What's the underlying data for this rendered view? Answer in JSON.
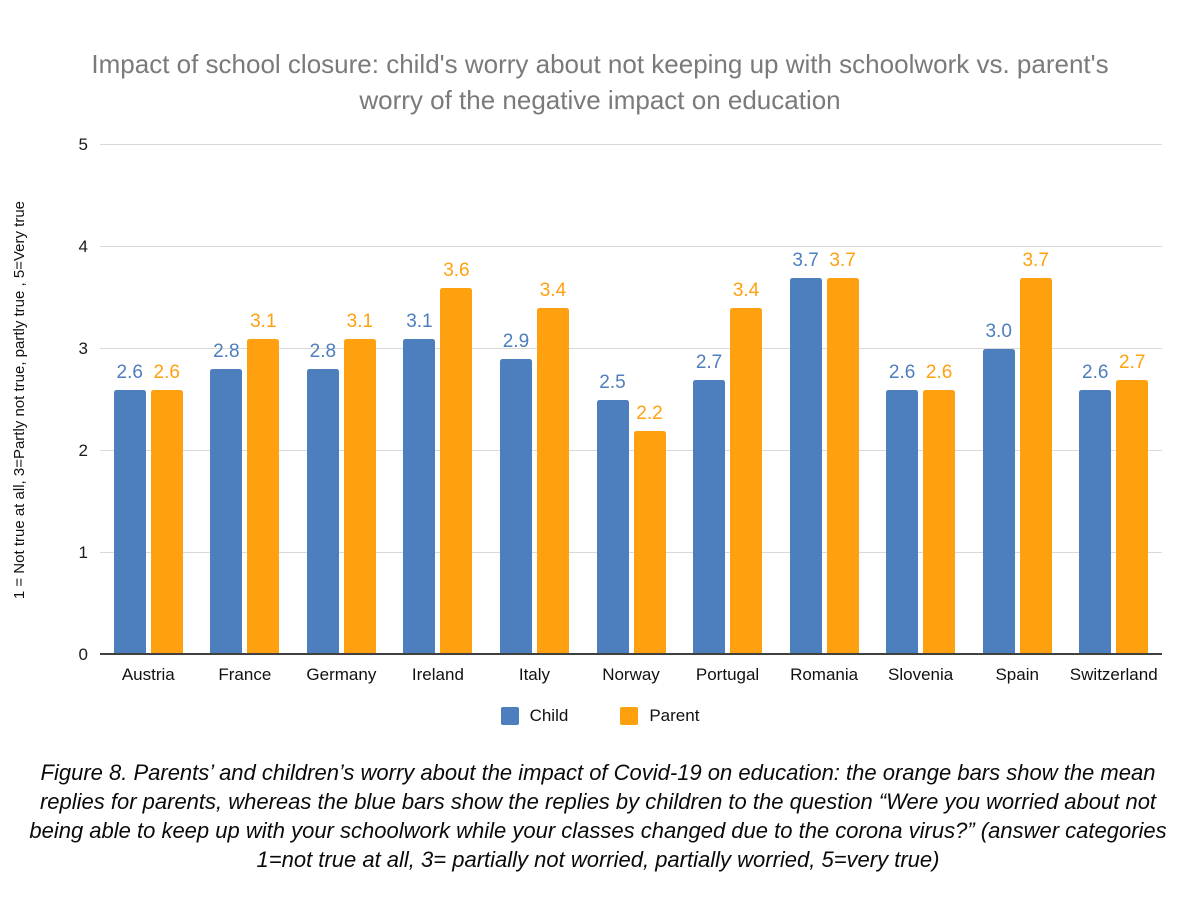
{
  "title": "Impact of school closure: child's worry about not keeping up with schoolwork vs. parent's worry of the negative impact on education",
  "chart_data": {
    "type": "bar",
    "title": "Impact of school closure: child's worry about not keeping up with schoolwork vs. parent's worry of the negative impact on education",
    "categories": [
      "Austria",
      "France",
      "Germany",
      "Ireland",
      "Italy",
      "Norway",
      "Portugal",
      "Romania",
      "Slovenia",
      "Spain",
      "Switzerland"
    ],
    "series": [
      {
        "name": "Child",
        "color": "#4d7ebd",
        "values": [
          2.6,
          2.8,
          2.8,
          3.1,
          2.9,
          2.5,
          2.7,
          3.7,
          2.6,
          3.0,
          2.6
        ]
      },
      {
        "name": "Parent",
        "color": "#ffa00f",
        "values": [
          2.6,
          3.1,
          3.1,
          3.6,
          3.4,
          2.2,
          3.4,
          3.7,
          2.6,
          3.7,
          2.7
        ]
      }
    ],
    "xlabel": "",
    "ylabel": "1 = Not true at all, 3=Partly not true, partly true , 5=Very true",
    "ylim": [
      0,
      5
    ],
    "yticks": [
      0,
      1,
      2,
      3,
      4,
      5
    ],
    "grid": true,
    "data_labels": true,
    "legend_position": "bottom",
    "colors": {
      "title_gray": "#7a7a7a",
      "gridline": "#d9d9d9",
      "axis_line": "#404040"
    }
  },
  "caption": {
    "lines": [
      "Figure 8. Parents’ and children’s worry about the impact of Covid-19 on education: the orange bars show the mean",
      "replies for parents, whereas the blue bars show the replies by children to the question “Were you worried about not",
      "being able to keep up with your schoolwork while your classes changed due to the corona virus?” (answer categories",
      "1=not true at all, 3= partially not worried, partially worried, 5=very true)"
    ]
  }
}
